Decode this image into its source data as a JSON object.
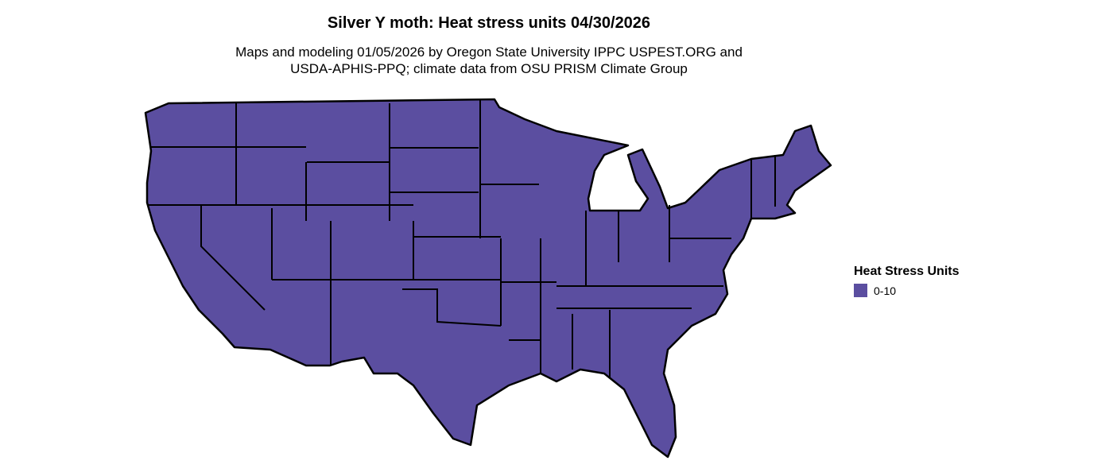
{
  "title": "Silver Y moth: Heat stress units 04/30/2026",
  "subtitle_lines": [
    "Maps and modeling 01/05/2026 by Oregon State University IPPC USPEST.ORG and",
    "USDA-APHIS-PPQ; climate data from OSU PRISM Climate Group"
  ],
  "map": {
    "region": "Contiguous United States",
    "fill_color": "#5b4ea0",
    "border_color": "#000000",
    "value_class": "0-10"
  },
  "legend": {
    "title": "Heat Stress Units",
    "items": [
      {
        "label": "0-10",
        "color": "#5b4ea0"
      }
    ]
  }
}
